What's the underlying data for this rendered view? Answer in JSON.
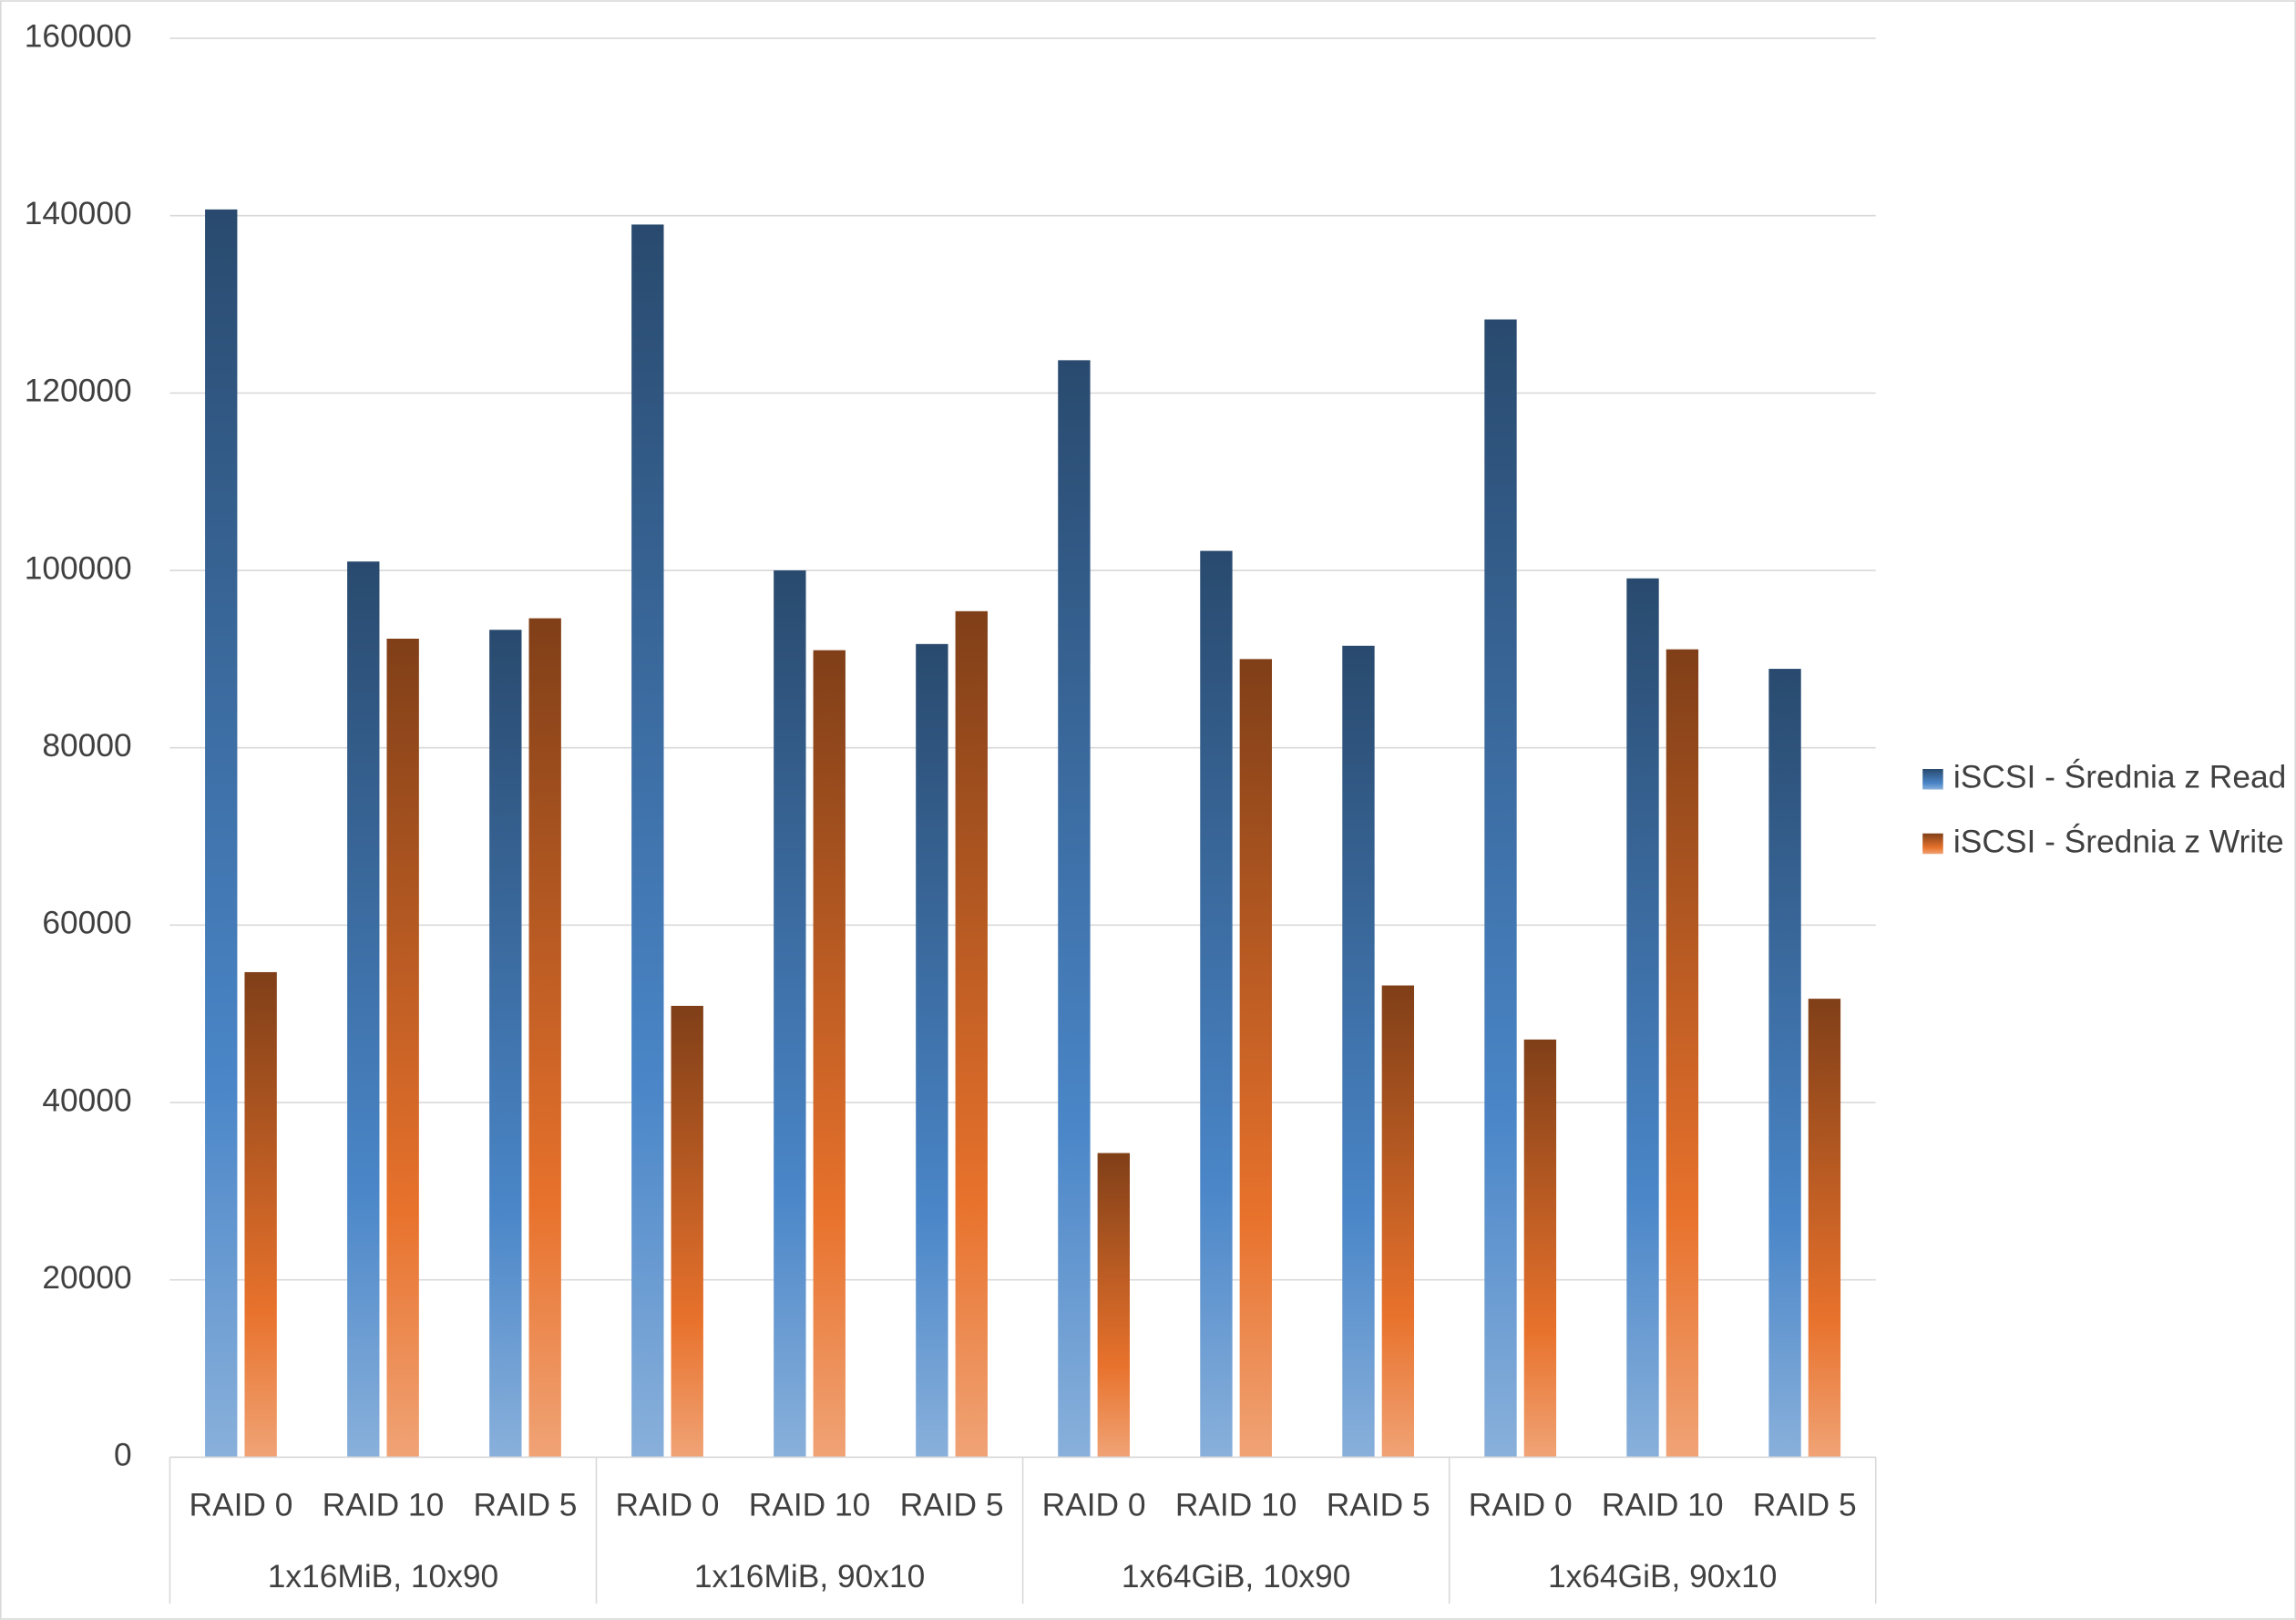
{
  "chart_data": {
    "type": "bar",
    "categories": [
      "RAID 0",
      "RAID 10",
      "RAID 5",
      "RAID 0",
      "RAID 10",
      "RAID 5",
      "RAID 0",
      "RAID 10",
      "RAID 5",
      "RAID 0",
      "RAID 10",
      "RAID 5"
    ],
    "groups": [
      "1x16MiB, 10x90",
      "1x16MiB, 90x10",
      "1x64GiB, 10x90",
      "1x64GiB, 90x10"
    ],
    "series": [
      {
        "name": "iSCSI - Średnia z Read I",
        "color": "#4a86c8",
        "values": [
          140700,
          101000,
          93300,
          139000,
          100000,
          91700,
          123700,
          102200,
          91500,
          128300,
          99100,
          88900
        ]
      },
      {
        "name": "iSCSI - Średnia z Write",
        "color": "#e8722c",
        "values": [
          54700,
          92300,
          94600,
          50900,
          91000,
          95400,
          34300,
          90000,
          53200,
          47100,
          91100,
          51700
        ]
      }
    ],
    "ylim": [
      0,
      160000
    ],
    "yticks": [
      0,
      20000,
      40000,
      60000,
      80000,
      100000,
      120000,
      140000,
      160000
    ],
    "grid": true,
    "legend": "right"
  }
}
